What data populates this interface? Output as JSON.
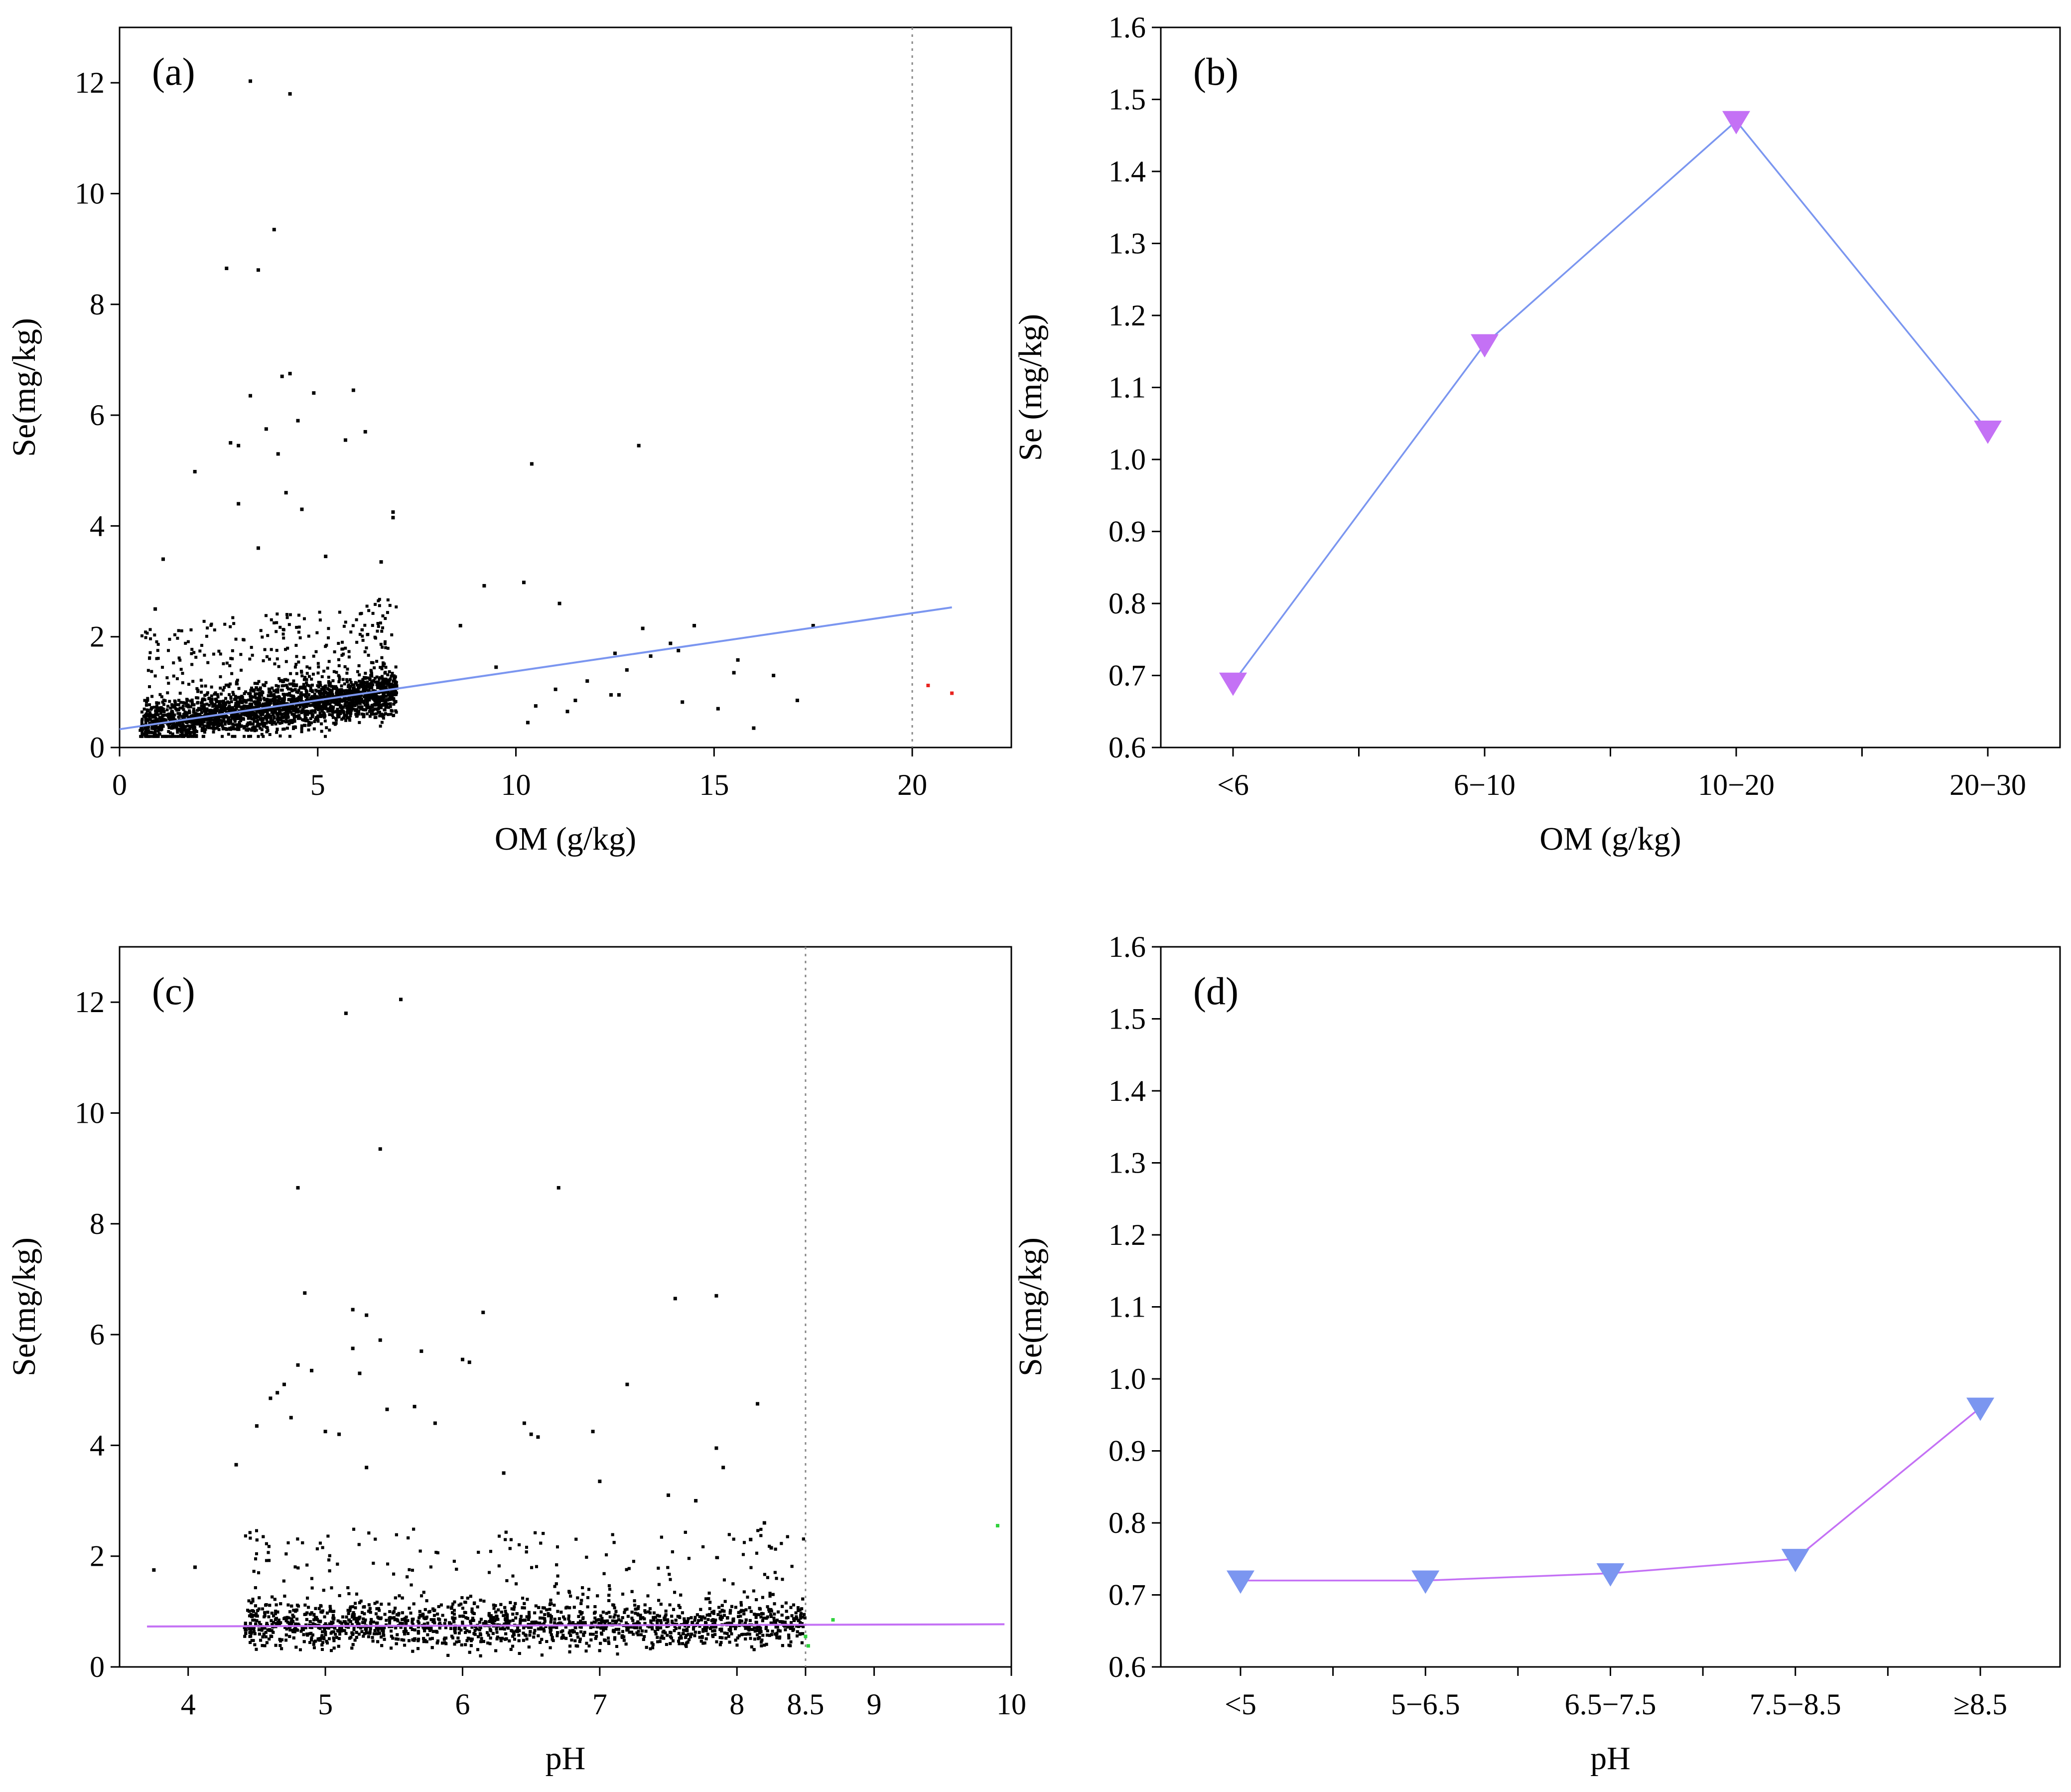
{
  "chart_data": [
    {
      "panel": "(a)",
      "type": "scatter",
      "xlabel": "OM (g/kg)",
      "ylabel": "Se(mg/kg)",
      "xlim": [
        0,
        22.5
      ],
      "ylim": [
        0,
        13
      ],
      "x_ticks": [
        0,
        5,
        10,
        15,
        20
      ],
      "y_ticks": [
        0,
        2,
        4,
        6,
        8,
        10,
        12
      ],
      "reference_line_x": 20,
      "point_color": "#000000",
      "highlight_color": "#e8231f",
      "trend_color": "#7b96f0",
      "bulk_cluster": {
        "x_range": [
          0.5,
          7
        ],
        "center_y": 0.65,
        "n_points": 2600
      },
      "trend_line": {
        "x": [
          0,
          21
        ],
        "y": [
          0.33,
          2.53
        ]
      },
      "points": [
        {
          "x": 3.3,
          "y": 12.03
        },
        {
          "x": 4.3,
          "y": 11.8
        },
        {
          "x": 3.9,
          "y": 9.35
        },
        {
          "x": 2.7,
          "y": 8.65
        },
        {
          "x": 3.5,
          "y": 8.62
        },
        {
          "x": 4.1,
          "y": 6.7
        },
        {
          "x": 4.3,
          "y": 6.75
        },
        {
          "x": 3.3,
          "y": 6.35
        },
        {
          "x": 4.9,
          "y": 6.4
        },
        {
          "x": 5.9,
          "y": 6.45
        },
        {
          "x": 3.7,
          "y": 5.75
        },
        {
          "x": 4.5,
          "y": 5.9
        },
        {
          "x": 6.2,
          "y": 5.7
        },
        {
          "x": 2.8,
          "y": 5.5
        },
        {
          "x": 3.0,
          "y": 5.45
        },
        {
          "x": 4.0,
          "y": 5.3
        },
        {
          "x": 5.7,
          "y": 5.55
        },
        {
          "x": 10.4,
          "y": 5.12
        },
        {
          "x": 13.1,
          "y": 5.45
        },
        {
          "x": 1.9,
          "y": 4.98
        },
        {
          "x": 4.2,
          "y": 4.6
        },
        {
          "x": 4.6,
          "y": 4.3
        },
        {
          "x": 3.0,
          "y": 4.4
        },
        {
          "x": 6.9,
          "y": 4.25
        },
        {
          "x": 6.9,
          "y": 4.15
        },
        {
          "x": 1.1,
          "y": 3.4
        },
        {
          "x": 5.2,
          "y": 3.45
        },
        {
          "x": 3.5,
          "y": 3.6
        },
        {
          "x": 6.6,
          "y": 3.35
        },
        {
          "x": 0.9,
          "y": 2.5
        },
        {
          "x": 10.2,
          "y": 2.98
        },
        {
          "x": 9.2,
          "y": 2.92
        },
        {
          "x": 11.1,
          "y": 2.6
        },
        {
          "x": 14.5,
          "y": 2.2
        },
        {
          "x": 17.5,
          "y": 2.2
        },
        {
          "x": 13.2,
          "y": 2.15
        },
        {
          "x": 13.9,
          "y": 1.88
        },
        {
          "x": 12.5,
          "y": 1.7
        },
        {
          "x": 14.1,
          "y": 1.75
        },
        {
          "x": 15.6,
          "y": 1.58
        },
        {
          "x": 13.4,
          "y": 1.65
        },
        {
          "x": 12.8,
          "y": 1.4
        },
        {
          "x": 16.5,
          "y": 1.3
        },
        {
          "x": 15.5,
          "y": 1.35
        },
        {
          "x": 11.8,
          "y": 1.2
        },
        {
          "x": 14.2,
          "y": 0.82
        },
        {
          "x": 17.1,
          "y": 0.85
        },
        {
          "x": 15.1,
          "y": 0.7
        },
        {
          "x": 12.4,
          "y": 0.95
        },
        {
          "x": 12.6,
          "y": 0.95
        },
        {
          "x": 16.0,
          "y": 0.35
        },
        {
          "x": 10.3,
          "y": 0.45
        },
        {
          "x": 11.3,
          "y": 0.65
        },
        {
          "x": 11.5,
          "y": 0.85
        },
        {
          "x": 8.6,
          "y": 2.2
        },
        {
          "x": 9.5,
          "y": 1.45
        },
        {
          "x": 10.5,
          "y": 0.75
        },
        {
          "x": 11.0,
          "y": 1.05
        }
      ],
      "highlight_points": [
        {
          "x": 20.4,
          "y": 1.12
        },
        {
          "x": 21.0,
          "y": 0.98
        }
      ]
    },
    {
      "panel": "(b)",
      "type": "line",
      "xlabel": "OM (g/kg)",
      "ylabel": "Se (mg/kg)",
      "categories": [
        "<6",
        "6−10",
        "10−20",
        "20−30"
      ],
      "values": [
        0.69,
        1.16,
        1.47,
        1.04
      ],
      "ylim": [
        0.6,
        1.6
      ],
      "y_ticks": [
        0.6,
        0.7,
        0.8,
        0.9,
        1.0,
        1.1,
        1.2,
        1.3,
        1.4,
        1.5,
        1.6
      ],
      "marker_color": "#c471f5",
      "line_color": "#7b96f0"
    },
    {
      "panel": "(c)",
      "type": "scatter",
      "xlabel": "pH",
      "ylabel": "Se(mg/kg)",
      "xlim": [
        3.5,
        10
      ],
      "ylim": [
        0,
        13
      ],
      "x_ticks": [
        4,
        5,
        6,
        7,
        8,
        8.5,
        9,
        10
      ],
      "x_tick_labels": [
        "4",
        "5",
        "6",
        "7",
        "8",
        "8.5",
        "9",
        "10"
      ],
      "y_ticks": [
        0,
        2,
        4,
        6,
        8,
        10,
        12
      ],
      "reference_line_x": 8.5,
      "point_color": "#000000",
      "highlight_color": "#2fd23c",
      "trend_color": "#c471f5",
      "bulk_cluster": {
        "x_range": [
          4.4,
          8.5
        ],
        "center_y": 0.7,
        "n_points": 3500
      },
      "trend_line": {
        "x": [
          3.7,
          9.95
        ],
        "y": [
          0.73,
          0.77
        ]
      },
      "points": [
        {
          "x": 5.55,
          "y": 12.05
        },
        {
          "x": 5.15,
          "y": 11.8
        },
        {
          "x": 5.4,
          "y": 9.35
        },
        {
          "x": 4.8,
          "y": 8.65
        },
        {
          "x": 6.7,
          "y": 8.65
        },
        {
          "x": 4.85,
          "y": 6.75
        },
        {
          "x": 7.85,
          "y": 6.7
        },
        {
          "x": 7.55,
          "y": 6.65
        },
        {
          "x": 5.2,
          "y": 6.45
        },
        {
          "x": 5.3,
          "y": 6.35
        },
        {
          "x": 6.15,
          "y": 6.4
        },
        {
          "x": 5.4,
          "y": 5.9
        },
        {
          "x": 5.2,
          "y": 5.75
        },
        {
          "x": 5.7,
          "y": 5.7
        },
        {
          "x": 6.0,
          "y": 5.55
        },
        {
          "x": 6.05,
          "y": 5.5
        },
        {
          "x": 4.8,
          "y": 5.45
        },
        {
          "x": 4.9,
          "y": 5.35
        },
        {
          "x": 5.25,
          "y": 5.3
        },
        {
          "x": 7.2,
          "y": 5.1
        },
        {
          "x": 4.7,
          "y": 5.1
        },
        {
          "x": 4.65,
          "y": 4.95
        },
        {
          "x": 4.6,
          "y": 4.85
        },
        {
          "x": 8.15,
          "y": 4.75
        },
        {
          "x": 5.45,
          "y": 4.65
        },
        {
          "x": 5.65,
          "y": 4.7
        },
        {
          "x": 4.75,
          "y": 4.5
        },
        {
          "x": 4.5,
          "y": 4.35
        },
        {
          "x": 5.8,
          "y": 4.4
        },
        {
          "x": 6.45,
          "y": 4.4
        },
        {
          "x": 6.5,
          "y": 4.2
        },
        {
          "x": 6.55,
          "y": 4.15
        },
        {
          "x": 6.95,
          "y": 4.25
        },
        {
          "x": 5.0,
          "y": 4.25
        },
        {
          "x": 5.1,
          "y": 4.2
        },
        {
          "x": 7.85,
          "y": 3.95
        },
        {
          "x": 4.35,
          "y": 3.65
        },
        {
          "x": 7.9,
          "y": 3.6
        },
        {
          "x": 5.3,
          "y": 3.6
        },
        {
          "x": 6.3,
          "y": 3.5
        },
        {
          "x": 7.0,
          "y": 3.35
        },
        {
          "x": 7.5,
          "y": 3.1
        },
        {
          "x": 7.7,
          "y": 3.0
        },
        {
          "x": 3.75,
          "y": 1.75
        },
        {
          "x": 4.05,
          "y": 1.8
        },
        {
          "x": 8.2,
          "y": 2.6
        },
        {
          "x": 8.1,
          "y": 2.3
        },
        {
          "x": 8.25,
          "y": 2.15
        }
      ],
      "highlight_points": [
        {
          "x": 9.9,
          "y": 2.55
        },
        {
          "x": 8.7,
          "y": 0.85
        },
        {
          "x": 8.5,
          "y": 0.55
        },
        {
          "x": 8.52,
          "y": 0.38
        }
      ]
    },
    {
      "panel": "(d)",
      "type": "line",
      "xlabel": "pH",
      "ylabel": "Se(mg/kg)",
      "categories": [
        "<5",
        "5−6.5",
        "6.5−7.5",
        "7.5−8.5",
        "≥8.5"
      ],
      "values": [
        0.72,
        0.72,
        0.73,
        0.75,
        0.96
      ],
      "ylim": [
        0.6,
        1.6
      ],
      "y_ticks": [
        0.6,
        0.7,
        0.8,
        0.9,
        1.0,
        1.1,
        1.2,
        1.3,
        1.4,
        1.5,
        1.6
      ],
      "marker_color": "#7b96f0",
      "line_color": "#c471f5"
    }
  ]
}
